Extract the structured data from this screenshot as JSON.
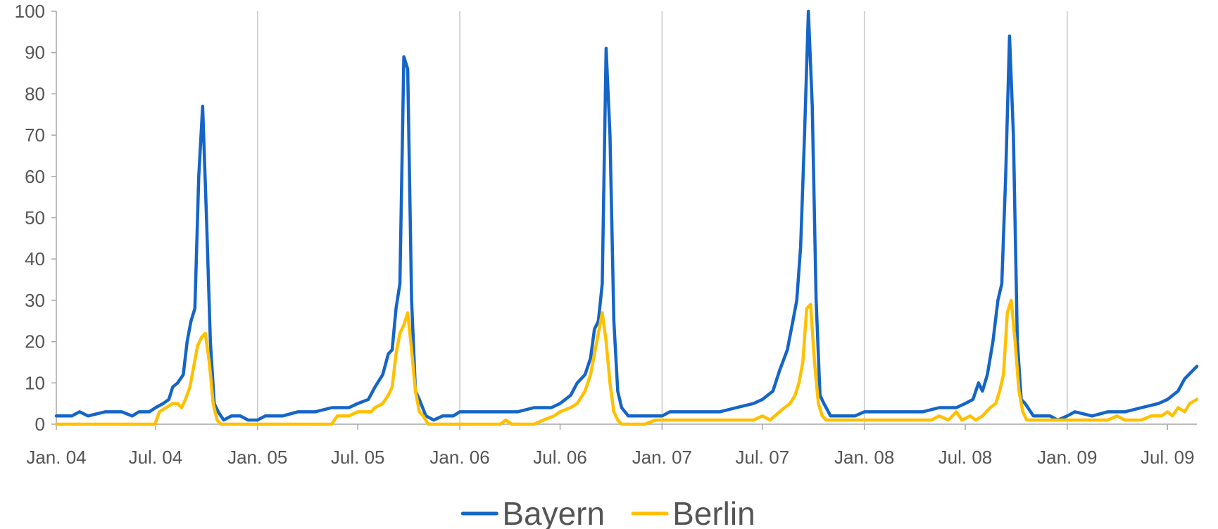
{
  "chart_data": {
    "type": "line",
    "title": "",
    "xlabel": "",
    "ylabel": "",
    "ylim": [
      0,
      100
    ],
    "yticks": [
      0,
      10,
      20,
      30,
      40,
      50,
      60,
      70,
      80,
      90,
      100
    ],
    "xrange": [
      "2004-01-04",
      "2009-08-23"
    ],
    "xticks": [
      {
        "date": "2004-01-01",
        "label": "Jan. 04"
      },
      {
        "date": "2004-07-01",
        "label": "Jul. 04"
      },
      {
        "date": "2005-01-01",
        "label": "Jan. 05"
      },
      {
        "date": "2005-07-01",
        "label": "Jul. 05"
      },
      {
        "date": "2006-01-01",
        "label": "Jan. 06"
      },
      {
        "date": "2006-07-01",
        "label": "Jul. 06"
      },
      {
        "date": "2007-01-01",
        "label": "Jan. 07"
      },
      {
        "date": "2007-07-01",
        "label": "Jul. 07"
      },
      {
        "date": "2008-01-01",
        "label": "Jan. 08"
      },
      {
        "date": "2008-07-01",
        "label": "Jul. 08"
      },
      {
        "date": "2009-01-01",
        "label": "Jan. 09"
      },
      {
        "date": "2009-07-01",
        "label": "Jul. 09"
      }
    ],
    "gridlines": "vertical-at-january",
    "legend_position": "bottom-center",
    "series": [
      {
        "name": "Bayern",
        "color": "#1565c8",
        "points": [
          [
            "2004-01-04",
            2
          ],
          [
            "2004-02-01",
            2
          ],
          [
            "2004-02-15",
            3
          ],
          [
            "2004-03-01",
            2
          ],
          [
            "2004-04-01",
            3
          ],
          [
            "2004-05-01",
            3
          ],
          [
            "2004-05-20",
            2
          ],
          [
            "2004-06-01",
            3
          ],
          [
            "2004-06-20",
            3
          ],
          [
            "2004-07-01",
            4
          ],
          [
            "2004-07-15",
            5
          ],
          [
            "2004-07-25",
            6
          ],
          [
            "2004-08-01",
            9
          ],
          [
            "2004-08-10",
            10
          ],
          [
            "2004-08-20",
            12
          ],
          [
            "2004-08-27",
            20
          ],
          [
            "2004-09-03",
            25
          ],
          [
            "2004-09-10",
            28
          ],
          [
            "2004-09-17",
            60
          ],
          [
            "2004-09-24",
            77
          ],
          [
            "2004-10-01",
            50
          ],
          [
            "2004-10-08",
            20
          ],
          [
            "2004-10-15",
            5
          ],
          [
            "2004-10-22",
            3
          ],
          [
            "2004-11-01",
            1
          ],
          [
            "2004-11-15",
            2
          ],
          [
            "2004-12-01",
            2
          ],
          [
            "2004-12-15",
            1
          ],
          [
            "2005-01-01",
            1
          ],
          [
            "2005-01-15",
            2
          ],
          [
            "2005-02-15",
            2
          ],
          [
            "2005-03-15",
            3
          ],
          [
            "2005-04-15",
            3
          ],
          [
            "2005-05-15",
            4
          ],
          [
            "2005-06-15",
            4
          ],
          [
            "2005-07-01",
            5
          ],
          [
            "2005-07-20",
            6
          ],
          [
            "2005-08-01",
            9
          ],
          [
            "2005-08-15",
            12
          ],
          [
            "2005-08-25",
            17
          ],
          [
            "2005-09-01",
            18
          ],
          [
            "2005-09-08",
            28
          ],
          [
            "2005-09-15",
            34
          ],
          [
            "2005-09-22",
            89
          ],
          [
            "2005-09-29",
            86
          ],
          [
            "2005-10-06",
            30
          ],
          [
            "2005-10-13",
            8
          ],
          [
            "2005-10-20",
            6
          ],
          [
            "2005-11-01",
            2
          ],
          [
            "2005-11-15",
            1
          ],
          [
            "2005-12-01",
            2
          ],
          [
            "2005-12-20",
            2
          ],
          [
            "2006-01-01",
            3
          ],
          [
            "2006-02-15",
            3
          ],
          [
            "2006-03-15",
            3
          ],
          [
            "2006-04-15",
            3
          ],
          [
            "2006-05-15",
            4
          ],
          [
            "2006-06-15",
            4
          ],
          [
            "2006-07-01",
            5
          ],
          [
            "2006-07-20",
            7
          ],
          [
            "2006-08-01",
            10
          ],
          [
            "2006-08-15",
            12
          ],
          [
            "2006-08-25",
            16
          ],
          [
            "2006-09-01",
            23
          ],
          [
            "2006-09-08",
            25
          ],
          [
            "2006-09-15",
            34
          ],
          [
            "2006-09-22",
            91
          ],
          [
            "2006-09-29",
            70
          ],
          [
            "2006-10-06",
            25
          ],
          [
            "2006-10-13",
            8
          ],
          [
            "2006-10-20",
            4
          ],
          [
            "2006-11-01",
            2
          ],
          [
            "2006-11-15",
            2
          ],
          [
            "2006-12-15",
            2
          ],
          [
            "2007-01-01",
            2
          ],
          [
            "2007-01-15",
            3
          ],
          [
            "2007-02-15",
            3
          ],
          [
            "2007-03-15",
            3
          ],
          [
            "2007-04-15",
            3
          ],
          [
            "2007-05-15",
            4
          ],
          [
            "2007-06-15",
            5
          ],
          [
            "2007-07-01",
            6
          ],
          [
            "2007-07-20",
            8
          ],
          [
            "2007-08-01",
            13
          ],
          [
            "2007-08-15",
            18
          ],
          [
            "2007-08-25",
            25
          ],
          [
            "2007-09-01",
            30
          ],
          [
            "2007-09-08",
            43
          ],
          [
            "2007-09-15",
            70
          ],
          [
            "2007-09-22",
            100
          ],
          [
            "2007-09-29",
            77
          ],
          [
            "2007-10-06",
            30
          ],
          [
            "2007-10-13",
            7
          ],
          [
            "2007-10-20",
            5
          ],
          [
            "2007-11-01",
            2
          ],
          [
            "2007-11-15",
            2
          ],
          [
            "2007-12-15",
            2
          ],
          [
            "2008-01-01",
            3
          ],
          [
            "2008-02-15",
            3
          ],
          [
            "2008-03-15",
            3
          ],
          [
            "2008-04-15",
            3
          ],
          [
            "2008-05-15",
            4
          ],
          [
            "2008-06-15",
            4
          ],
          [
            "2008-07-01",
            5
          ],
          [
            "2008-07-15",
            6
          ],
          [
            "2008-07-25",
            10
          ],
          [
            "2008-08-01",
            8
          ],
          [
            "2008-08-10",
            12
          ],
          [
            "2008-08-20",
            20
          ],
          [
            "2008-08-29",
            30
          ],
          [
            "2008-09-05",
            34
          ],
          [
            "2008-09-12",
            60
          ],
          [
            "2008-09-19",
            94
          ],
          [
            "2008-09-26",
            70
          ],
          [
            "2008-10-03",
            20
          ],
          [
            "2008-10-10",
            6
          ],
          [
            "2008-10-17",
            5
          ],
          [
            "2008-11-01",
            2
          ],
          [
            "2008-12-01",
            2
          ],
          [
            "2008-12-15",
            1
          ],
          [
            "2009-01-01",
            2
          ],
          [
            "2009-01-15",
            3
          ],
          [
            "2009-02-15",
            2
          ],
          [
            "2009-03-15",
            3
          ],
          [
            "2009-04-15",
            3
          ],
          [
            "2009-05-15",
            4
          ],
          [
            "2009-06-15",
            5
          ],
          [
            "2009-07-01",
            6
          ],
          [
            "2009-07-20",
            8
          ],
          [
            "2009-08-01",
            11
          ],
          [
            "2009-08-23",
            14
          ]
        ]
      },
      {
        "name": "Berlin",
        "color": "#ffc000",
        "points": [
          [
            "2004-01-04",
            0
          ],
          [
            "2004-03-01",
            0
          ],
          [
            "2004-05-01",
            0
          ],
          [
            "2004-06-30",
            0
          ],
          [
            "2004-07-08",
            3
          ],
          [
            "2004-07-20",
            4
          ],
          [
            "2004-08-01",
            5
          ],
          [
            "2004-08-10",
            5
          ],
          [
            "2004-08-17",
            4
          ],
          [
            "2004-08-24",
            6
          ],
          [
            "2004-09-01",
            9
          ],
          [
            "2004-09-08",
            14
          ],
          [
            "2004-09-15",
            19
          ],
          [
            "2004-09-22",
            21
          ],
          [
            "2004-09-29",
            22
          ],
          [
            "2004-10-06",
            15
          ],
          [
            "2004-10-13",
            5
          ],
          [
            "2004-10-20",
            1
          ],
          [
            "2004-10-27",
            0
          ],
          [
            "2005-01-01",
            0
          ],
          [
            "2005-03-15",
            0
          ],
          [
            "2005-05-15",
            0
          ],
          [
            "2005-05-25",
            2
          ],
          [
            "2005-06-15",
            2
          ],
          [
            "2005-07-01",
            3
          ],
          [
            "2005-07-25",
            3
          ],
          [
            "2005-08-01",
            4
          ],
          [
            "2005-08-15",
            5
          ],
          [
            "2005-08-25",
            7
          ],
          [
            "2005-09-01",
            9
          ],
          [
            "2005-09-08",
            17
          ],
          [
            "2005-09-15",
            22
          ],
          [
            "2005-09-22",
            24
          ],
          [
            "2005-09-29",
            27
          ],
          [
            "2005-10-06",
            18
          ],
          [
            "2005-10-13",
            8
          ],
          [
            "2005-10-20",
            3
          ],
          [
            "2005-10-27",
            2
          ],
          [
            "2005-11-05",
            0
          ],
          [
            "2006-01-01",
            0
          ],
          [
            "2006-03-15",
            0
          ],
          [
            "2006-03-25",
            1
          ],
          [
            "2006-04-05",
            0
          ],
          [
            "2006-05-15",
            0
          ],
          [
            "2006-06-01",
            1
          ],
          [
            "2006-06-20",
            2
          ],
          [
            "2006-07-01",
            3
          ],
          [
            "2006-07-20",
            4
          ],
          [
            "2006-08-01",
            5
          ],
          [
            "2006-08-15",
            8
          ],
          [
            "2006-08-25",
            12
          ],
          [
            "2006-09-01",
            17
          ],
          [
            "2006-09-08",
            22
          ],
          [
            "2006-09-15",
            27
          ],
          [
            "2006-09-22",
            20
          ],
          [
            "2006-09-29",
            10
          ],
          [
            "2006-10-06",
            3
          ],
          [
            "2006-10-13",
            1
          ],
          [
            "2006-10-20",
            0
          ],
          [
            "2006-12-01",
            0
          ],
          [
            "2006-12-20",
            1
          ],
          [
            "2007-01-15",
            1
          ],
          [
            "2007-03-15",
            1
          ],
          [
            "2007-05-15",
            1
          ],
          [
            "2007-06-15",
            1
          ],
          [
            "2007-07-01",
            2
          ],
          [
            "2007-07-15",
            1
          ],
          [
            "2007-08-01",
            3
          ],
          [
            "2007-08-10",
            4
          ],
          [
            "2007-08-20",
            5
          ],
          [
            "2007-08-29",
            7
          ],
          [
            "2007-09-05",
            10
          ],
          [
            "2007-09-12",
            15
          ],
          [
            "2007-09-19",
            28
          ],
          [
            "2007-09-26",
            29
          ],
          [
            "2007-10-03",
            15
          ],
          [
            "2007-10-10",
            5
          ],
          [
            "2007-10-17",
            2
          ],
          [
            "2007-10-24",
            1
          ],
          [
            "2008-01-01",
            1
          ],
          [
            "2008-03-15",
            1
          ],
          [
            "2008-05-01",
            1
          ],
          [
            "2008-05-15",
            2
          ],
          [
            "2008-06-01",
            1
          ],
          [
            "2008-06-15",
            3
          ],
          [
            "2008-06-25",
            1
          ],
          [
            "2008-07-10",
            2
          ],
          [
            "2008-07-20",
            1
          ],
          [
            "2008-08-01",
            2
          ],
          [
            "2008-08-15",
            4
          ],
          [
            "2008-08-25",
            5
          ],
          [
            "2008-09-01",
            8
          ],
          [
            "2008-09-08",
            12
          ],
          [
            "2008-09-15",
            27
          ],
          [
            "2008-09-22",
            30
          ],
          [
            "2008-09-29",
            20
          ],
          [
            "2008-10-06",
            8
          ],
          [
            "2008-10-13",
            3
          ],
          [
            "2008-10-20",
            1
          ],
          [
            "2009-01-01",
            1
          ],
          [
            "2009-03-15",
            1
          ],
          [
            "2009-04-01",
            2
          ],
          [
            "2009-04-15",
            1
          ],
          [
            "2009-05-15",
            1
          ],
          [
            "2009-06-01",
            2
          ],
          [
            "2009-06-20",
            2
          ],
          [
            "2009-07-01",
            3
          ],
          [
            "2009-07-10",
            2
          ],
          [
            "2009-07-20",
            4
          ],
          [
            "2009-08-01",
            3
          ],
          [
            "2009-08-10",
            5
          ],
          [
            "2009-08-23",
            6
          ]
        ]
      }
    ]
  }
}
